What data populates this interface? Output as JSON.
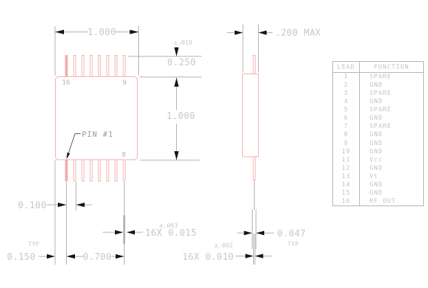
{
  "front_view": {
    "width_dim": "1.000",
    "pin_length_tol": "±.010",
    "pin_length_dim": "0.250",
    "height_dim": "1.000",
    "pin16_label": "16",
    "pin9_label": "9",
    "pin8_label": "8",
    "pin1_callout": "PIN #1",
    "pitch_dim": "0.100",
    "edge_typ": "TYP",
    "edge_dim": "0.150",
    "span_dim": "0.700",
    "lead_width_tol": "±.003",
    "lead_width_dim": "16X 0.015"
  },
  "side_view": {
    "max_width_dim": ".200 MAX",
    "lead_length_dim": "0.047",
    "lead_length_typ": "TYP",
    "lead_thickness_tol": "±.002",
    "lead_thickness_dim": "16X 0.010"
  },
  "lead_table": {
    "headers": [
      "LEAD",
      "FUNCTION"
    ],
    "rows": [
      {
        "lead": "1",
        "function": "SPARE"
      },
      {
        "lead": "2",
        "function": "GND"
      },
      {
        "lead": "3",
        "function": "SPARE"
      },
      {
        "lead": "4",
        "function": "GND"
      },
      {
        "lead": "5",
        "function": "SPARE"
      },
      {
        "lead": "6",
        "function": "GND"
      },
      {
        "lead": "7",
        "function": "SPARE"
      },
      {
        "lead": "8",
        "function": "GND"
      },
      {
        "lead": "9",
        "function": "GND"
      },
      {
        "lead": "10",
        "function": "GND"
      },
      {
        "lead": "11",
        "function": "Vcc"
      },
      {
        "lead": "12",
        "function": "GND"
      },
      {
        "lead": "13",
        "function": "Vt"
      },
      {
        "lead": "14",
        "function": "GND"
      },
      {
        "lead": "15",
        "function": "GND"
      },
      {
        "lead": "16",
        "function": "RF OUT"
      }
    ]
  },
  "colors": {
    "outline_pink": "#f5acac",
    "line_gray": "#adadad",
    "text_gray": "#c7c7c7",
    "arrow_black": "#171717"
  }
}
